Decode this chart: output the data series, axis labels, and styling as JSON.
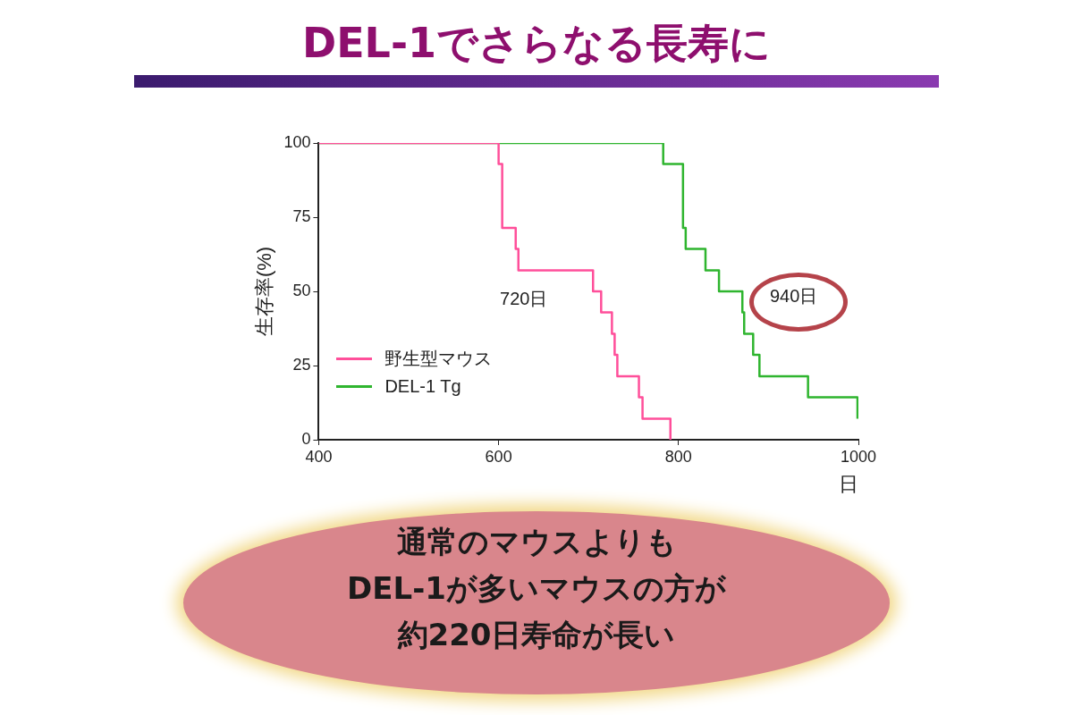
{
  "chart_data": {
    "type": "step",
    "title": "DEL-1でさらなる長寿に",
    "xlabel": "日",
    "ylabel": "生存率(%)",
    "xlim": [
      400,
      1000
    ],
    "xticks": [
      400,
      600,
      800,
      1000
    ],
    "ylim": [
      0,
      100
    ],
    "yticks": [
      0,
      25,
      50,
      75,
      100
    ],
    "grid": false,
    "legend": "bottom left",
    "marker": "none",
    "line_style": "solid",
    "series": [
      {
        "name": "野生型マウス",
        "color": "#ff4f9a",
        "x": [
          400,
          600,
          604,
          619,
          622,
          705,
          714,
          726,
          729,
          732,
          756,
          760,
          791
        ],
        "values": [
          100,
          92.9,
          71.4,
          64.3,
          57.1,
          50,
          42.9,
          35.7,
          28.6,
          21.4,
          14.3,
          7.1,
          0
        ]
      },
      {
        "name": "DEL-1 Tg",
        "color": "#2fb52f",
        "x": [
          400,
          783,
          805,
          808,
          830,
          845,
          871,
          873,
          883,
          890,
          944,
          999
        ],
        "values": [
          100,
          92.9,
          71.4,
          64.3,
          57.1,
          50,
          42.9,
          35.7,
          28.6,
          21.4,
          14.3,
          7.1
        ]
      }
    ],
    "annotations": [
      "720日",
      "940日",
      "通常のマウスよりも",
      "DEL-1が多いマウスの方が",
      "約220日寿命が長い"
    ]
  }
}
